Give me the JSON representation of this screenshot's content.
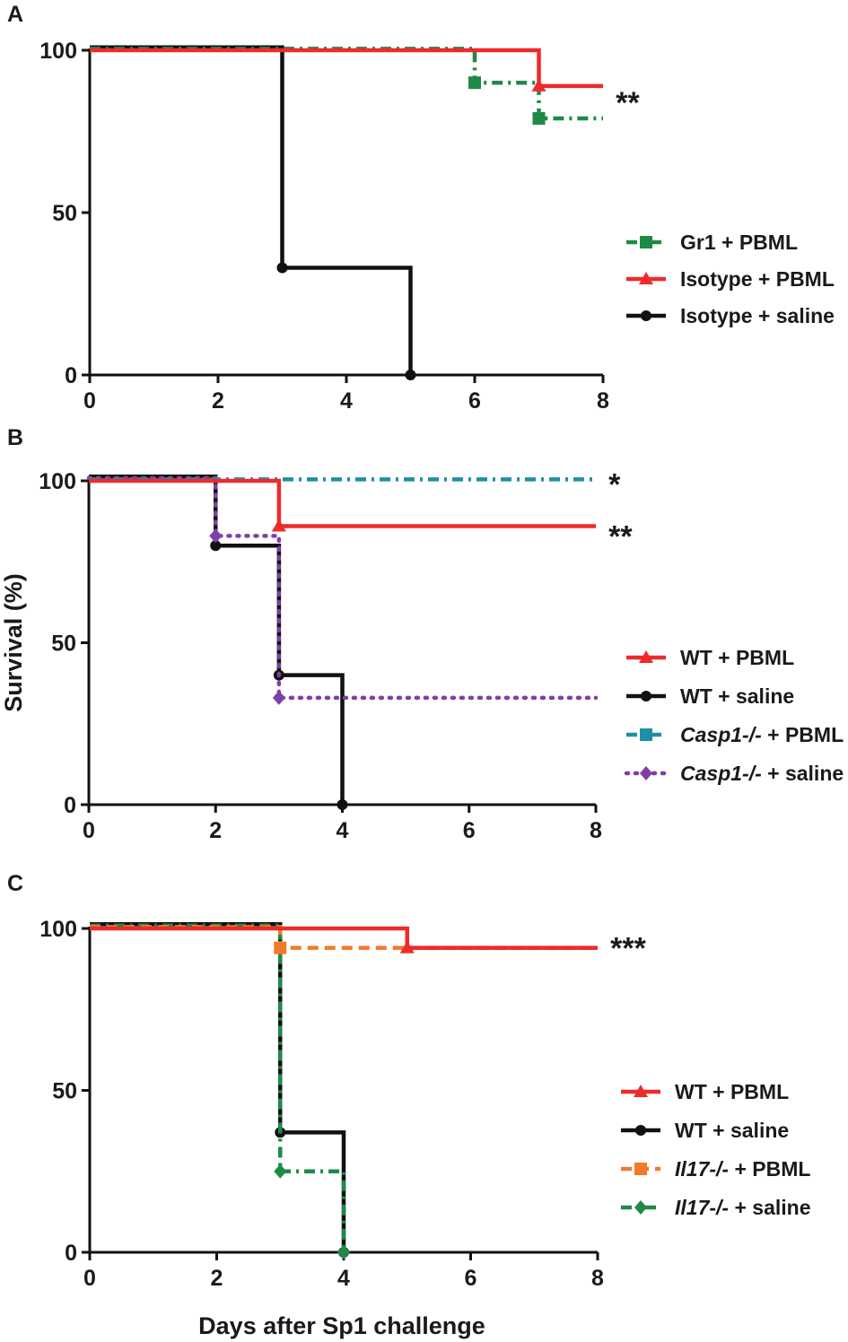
{
  "chart_data": [
    {
      "type": "line",
      "panel": "A",
      "step": true,
      "xlim": [
        0,
        8
      ],
      "ylim": [
        0,
        100
      ],
      "xticks": [
        "0",
        "2",
        "4",
        "6",
        "8"
      ],
      "yticks": [
        "0",
        "50",
        "100"
      ],
      "xlabel": "",
      "ylabel": "",
      "legend_position": "right",
      "series": [
        {
          "name": "Gr1 + PBML",
          "name_parts": [
            {
              "t": "Gr1 + PBML",
              "i": false
            }
          ],
          "color": "#1e8a45",
          "dash": "dashdot",
          "marker": "square",
          "x": [
            0,
            6,
            7,
            8
          ],
          "y": [
            100,
            90,
            79,
            79
          ],
          "marker_idx": [
            1,
            2
          ]
        },
        {
          "name": "Isotype + PBML",
          "name_parts": [
            {
              "t": "Isotype + PBML",
              "i": false
            }
          ],
          "color": "#ee2a2a",
          "dash": "solid",
          "marker": "triangle",
          "x": [
            0,
            7,
            8
          ],
          "y": [
            100,
            89,
            89
          ],
          "marker_idx": [
            1
          ]
        },
        {
          "name": "Isotype + saline",
          "name_parts": [
            {
              "t": "Isotype + saline",
              "i": false
            }
          ],
          "color": "#111111",
          "dash": "solid",
          "marker": "circle",
          "x": [
            0,
            3,
            5
          ],
          "y": [
            100,
            33,
            0
          ],
          "marker_idx": [
            1,
            2
          ]
        }
      ],
      "annotations": [
        {
          "text": "**",
          "x": 8.2,
          "y": 84
        }
      ]
    },
    {
      "type": "line",
      "panel": "B",
      "step": true,
      "xlim": [
        0,
        8
      ],
      "ylim": [
        0,
        100
      ],
      "xticks": [
        "0",
        "2",
        "4",
        "6",
        "8"
      ],
      "yticks": [
        "0",
        "50",
        "100"
      ],
      "xlabel": "",
      "ylabel": "Survival (%)",
      "legend_position": "right",
      "series": [
        {
          "name": "WT + PBML",
          "name_parts": [
            {
              "t": "WT + PBML",
              "i": false
            }
          ],
          "color": "#ee2a2a",
          "dash": "solid",
          "marker": "triangle",
          "x": [
            0,
            3,
            8
          ],
          "y": [
            100,
            86,
            86
          ],
          "marker_idx": [
            1
          ]
        },
        {
          "name": "WT + saline",
          "name_parts": [
            {
              "t": "WT + saline",
              "i": false
            }
          ],
          "color": "#111111",
          "dash": "solid",
          "marker": "circle",
          "x": [
            0,
            2,
            3,
            4
          ],
          "y": [
            100,
            80,
            40,
            0
          ],
          "marker_idx": [
            1,
            2,
            3
          ]
        },
        {
          "name": "Casp1-/- + PBML",
          "name_parts": [
            {
              "t": "Casp1-/-",
              "i": true
            },
            {
              "t": " + PBML",
              "i": false
            }
          ],
          "color": "#1f8fa6",
          "dash": "dashdot",
          "marker": "square",
          "x": [
            0,
            8
          ],
          "y": [
            100,
            100
          ],
          "marker_idx": []
        },
        {
          "name": "Casp1-/- + saline",
          "name_parts": [
            {
              "t": "Casp1-/-",
              "i": true
            },
            {
              "t": " + saline",
              "i": false
            }
          ],
          "color": "#7f3fa6",
          "dash": "dot",
          "marker": "diamond",
          "x": [
            0,
            2,
            3,
            8
          ],
          "y": [
            100,
            83,
            33,
            33
          ],
          "marker_idx": [
            1,
            2
          ]
        }
      ],
      "annotations": [
        {
          "text": "*",
          "x": 8.2,
          "y": 99
        },
        {
          "text": "**",
          "x": 8.2,
          "y": 83
        }
      ]
    },
    {
      "type": "line",
      "panel": "C",
      "step": true,
      "xlim": [
        0,
        8
      ],
      "ylim": [
        0,
        100
      ],
      "xticks": [
        "0",
        "2",
        "4",
        "6",
        "8"
      ],
      "yticks": [
        "0",
        "50",
        "100"
      ],
      "xlabel": "Days after Sp1 challenge",
      "ylabel": "",
      "legend_position": "right",
      "series": [
        {
          "name": "WT + PBML",
          "name_parts": [
            {
              "t": "WT + PBML",
              "i": false
            }
          ],
          "color": "#ee2a2a",
          "dash": "solid",
          "marker": "triangle",
          "x": [
            0,
            5,
            8
          ],
          "y": [
            100,
            94,
            94
          ],
          "marker_idx": [
            1
          ]
        },
        {
          "name": "WT + saline",
          "name_parts": [
            {
              "t": "WT + saline",
              "i": false
            }
          ],
          "color": "#111111",
          "dash": "solid",
          "marker": "circle",
          "x": [
            0,
            3,
            4
          ],
          "y": [
            100,
            37,
            0
          ],
          "marker_idx": [
            1,
            2
          ]
        },
        {
          "name": "Il17-/- + PBML",
          "name_parts": [
            {
              "t": "Il17-/-",
              "i": true
            },
            {
              "t": " + PBML",
              "i": false
            }
          ],
          "color": "#f07a2a",
          "dash": "dash",
          "marker": "square",
          "x": [
            0,
            3,
            8
          ],
          "y": [
            100,
            94,
            94
          ],
          "marker_idx": [
            1
          ]
        },
        {
          "name": "Il17-/- + saline",
          "name_parts": [
            {
              "t": "Il17-/-",
              "i": true
            },
            {
              "t": " + saline",
              "i": false
            }
          ],
          "color": "#1e8a45",
          "dash": "dashdot",
          "marker": "diamond",
          "x": [
            0,
            3,
            4
          ],
          "y": [
            100,
            25,
            0
          ],
          "marker_idx": [
            1,
            2
          ]
        }
      ],
      "annotations": [
        {
          "text": "***",
          "x": 8.2,
          "y": 94
        }
      ]
    }
  ]
}
